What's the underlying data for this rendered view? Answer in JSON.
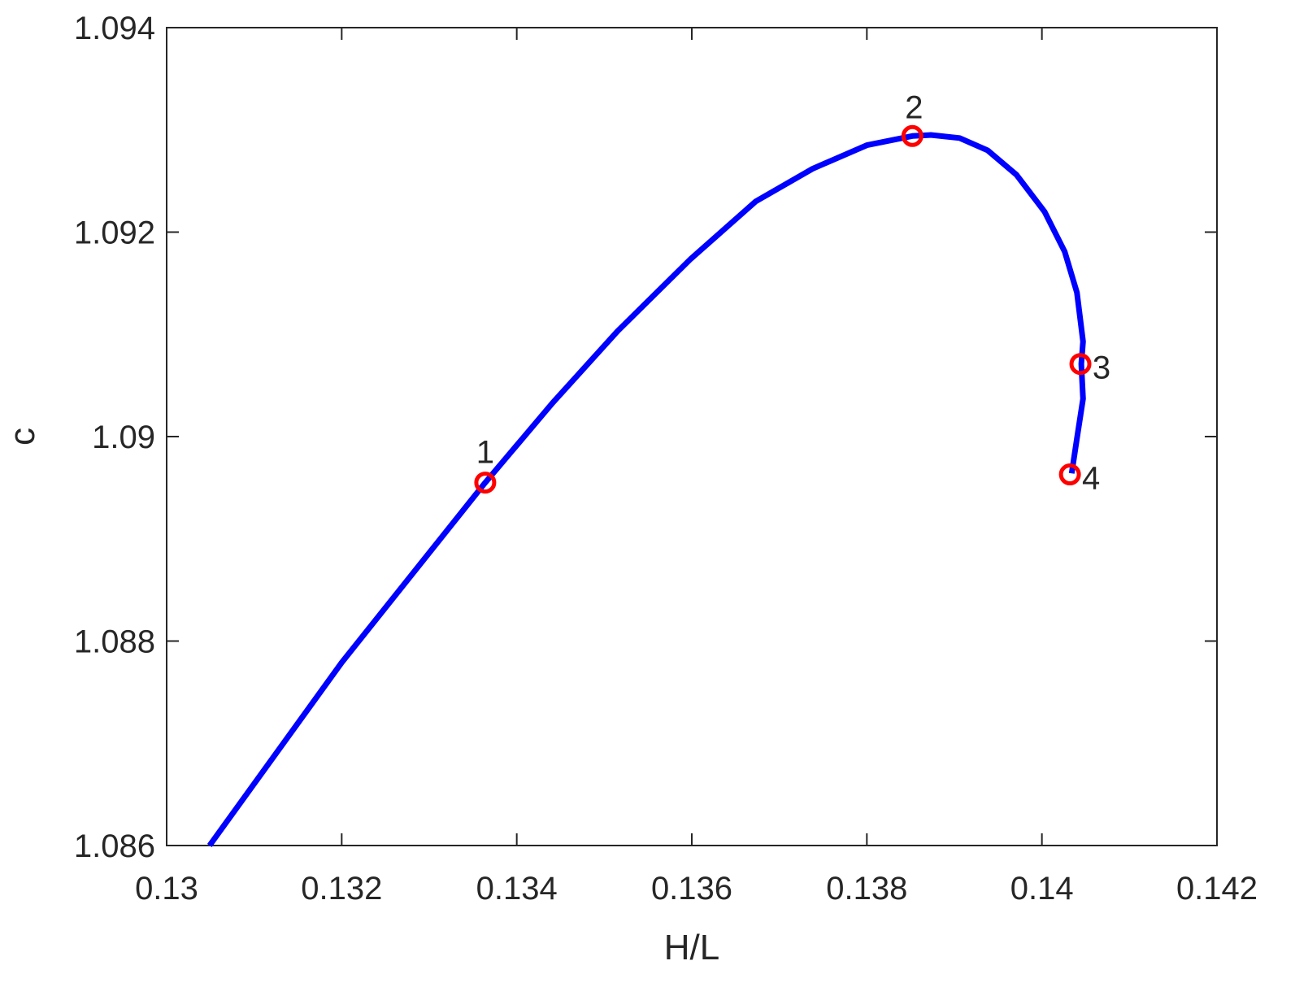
{
  "chart_data": {
    "type": "line",
    "xlabel": "H/L",
    "ylabel": "c",
    "xlim": [
      0.13,
      0.142
    ],
    "xticks": [
      0.13,
      0.132,
      0.134,
      0.136,
      0.138,
      0.14,
      0.142
    ],
    "ylim": [
      1.086,
      1.094
    ],
    "yticks": [
      1.086,
      1.088,
      1.09,
      1.092,
      1.094
    ],
    "series": [
      {
        "color": "#0000ff",
        "x": [
          0.13049,
          0.132,
          0.13364,
          0.13441,
          0.13515,
          0.13599,
          0.13673,
          0.13738,
          0.138,
          0.13852,
          0.13873,
          0.13906,
          0.13938,
          0.13971,
          0.14003,
          0.14026,
          0.1404,
          0.14047,
          0.14045,
          0.14047,
          0.1404,
          0.14034
        ],
        "values": [
          1.086,
          1.08779,
          1.08955,
          1.09033,
          1.09103,
          1.09174,
          1.0923,
          1.09262,
          1.09285,
          1.09294,
          1.09295,
          1.09292,
          1.0928,
          1.09256,
          1.0922,
          1.09181,
          1.09141,
          1.09093,
          1.09071,
          1.09037,
          1.08998,
          1.08964
        ]
      },
      {
        "color": "#ff0000",
        "marker": "circle",
        "x": [
          0.13364,
          0.13852,
          0.14044,
          0.14032
        ],
        "values": [
          1.08955,
          1.09294,
          1.09071,
          1.08963
        ],
        "labels": [
          "1",
          "2",
          "3",
          "4"
        ]
      }
    ]
  }
}
